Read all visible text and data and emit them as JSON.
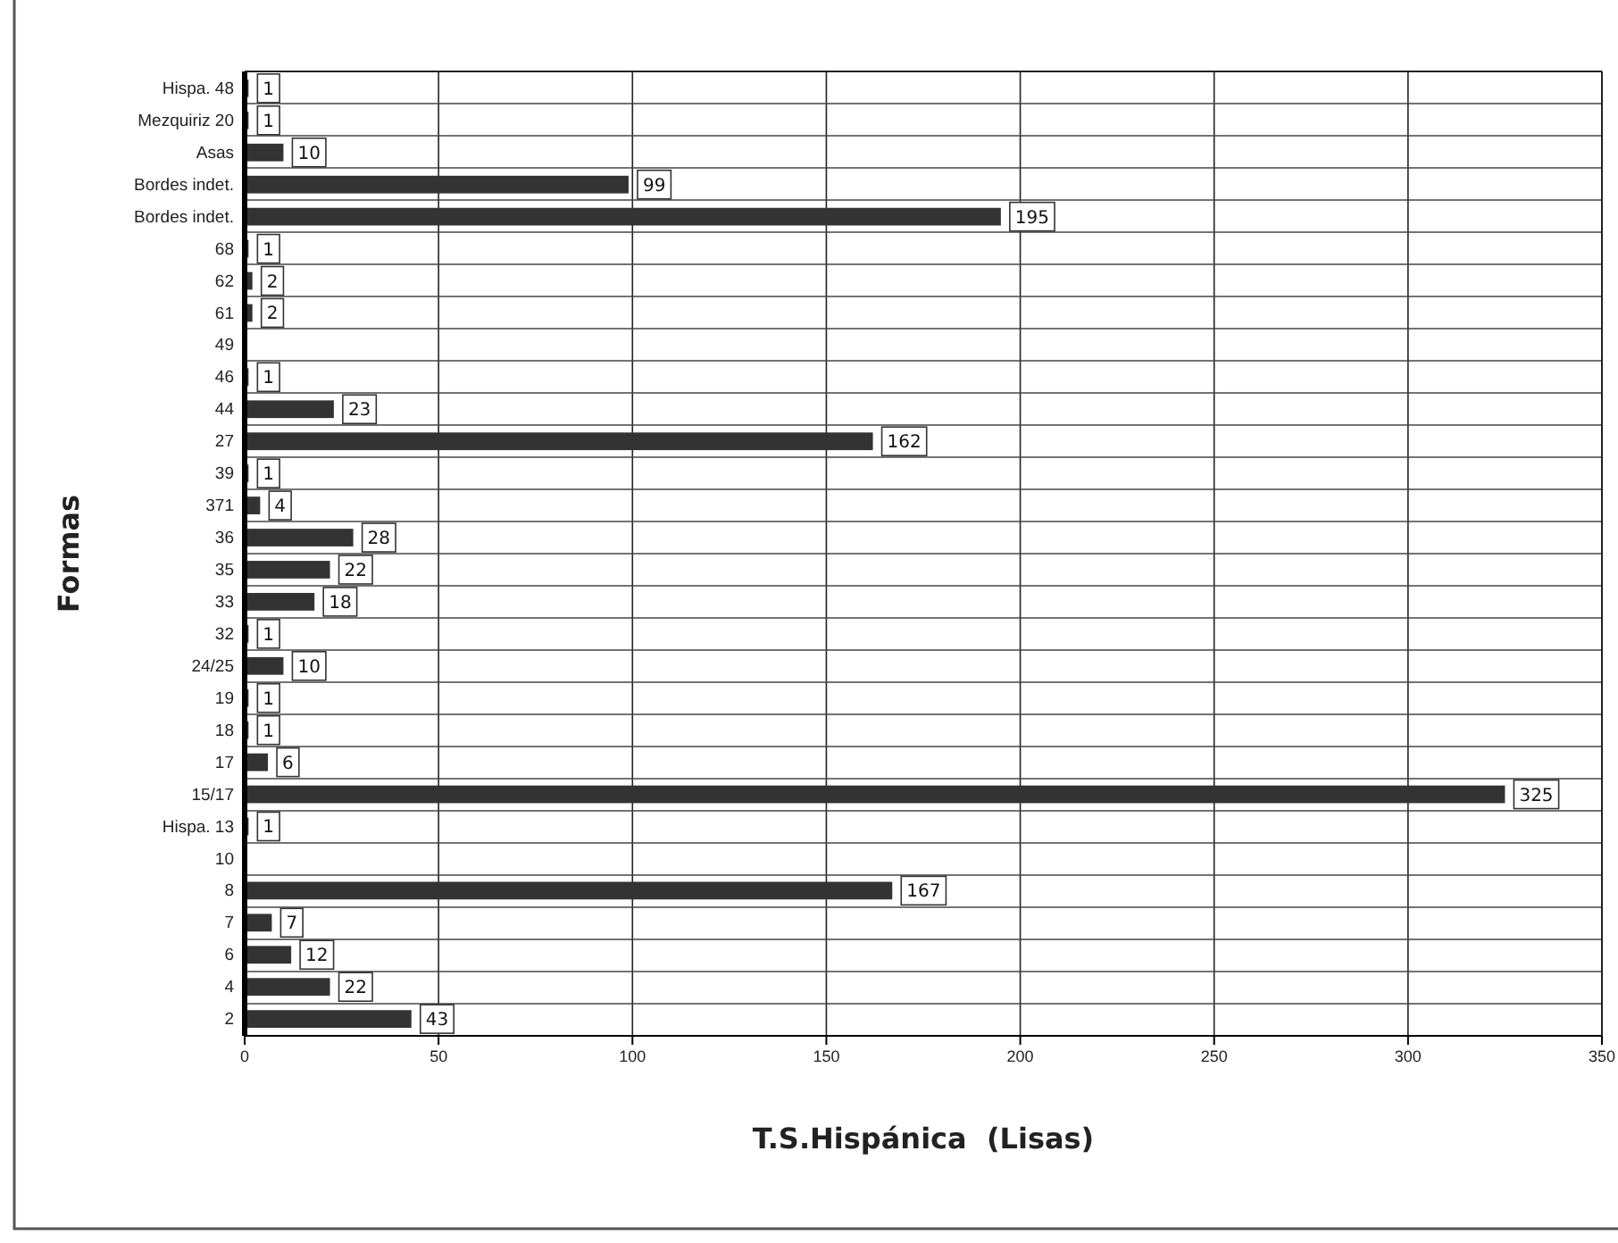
{
  "chart_data": {
    "type": "bar",
    "orientation": "horizontal",
    "xlabel": "T.S.Hispánica  (Lisas)",
    "ylabel": "Formas",
    "categories": [
      "Hispa. 48",
      "Mezquiriz 20",
      "Asas",
      "Bordes indet.",
      "Bordes indet.",
      "68",
      "62",
      "61",
      "49",
      "46",
      "44",
      "27",
      "39",
      "371",
      "36",
      "35",
      "33",
      "32",
      "24/25",
      "19",
      "18",
      "17",
      "15/17",
      "Hispa. 13",
      "10",
      "8",
      "7",
      "6",
      "4",
      "2"
    ],
    "values": [
      1,
      1,
      10,
      99,
      195,
      1,
      2,
      2,
      null,
      1,
      23,
      162,
      1,
      4,
      28,
      22,
      18,
      1,
      10,
      1,
      1,
      6,
      325,
      1,
      null,
      167,
      7,
      12,
      22,
      43
    ],
    "color": "#333333",
    "xlim": [
      0,
      350
    ],
    "xticks": [
      0,
      50,
      100,
      150,
      200,
      250,
      300,
      350
    ],
    "grid": true,
    "data_labels": true
  }
}
